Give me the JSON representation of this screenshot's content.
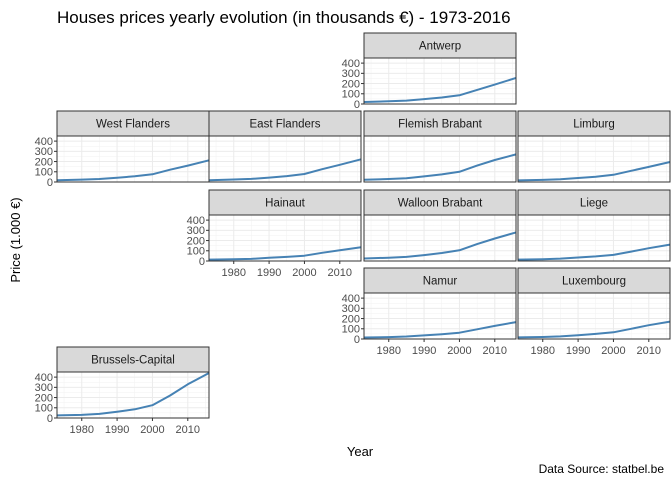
{
  "chart_data": {
    "type": "line",
    "title": "Houses prices yearly evolution (in thousands €) -  1973-2016",
    "xlabel": "Year",
    "ylabel": "Price (1.000 €)",
    "caption": "Data Source: statbel.be",
    "x_ticks": [
      "1980",
      "1990",
      "2000",
      "2010"
    ],
    "y_ticks": [
      "0",
      "100",
      "200",
      "300",
      "400"
    ],
    "xlim": [
      1973,
      2016
    ],
    "ylim": [
      0,
      450
    ],
    "grid": true,
    "colors": {
      "line": "#4682b4",
      "strip": "#d9d9d9",
      "grid": "#ebebeb",
      "panel_border": "#333333"
    },
    "x": [
      1973,
      1980,
      1985,
      1990,
      1995,
      2000,
      2005,
      2010,
      2016
    ],
    "series": [
      {
        "name": "Antwerp",
        "values": [
          20,
          26,
          33,
          48,
          64,
          85,
          138,
          190,
          255
        ]
      },
      {
        "name": "West Flanders",
        "values": [
          18,
          23,
          29,
          42,
          56,
          75,
          120,
          160,
          212
        ]
      },
      {
        "name": "East Flanders",
        "values": [
          18,
          24,
          30,
          43,
          58,
          78,
          125,
          168,
          222
        ]
      },
      {
        "name": "Flemish Brabant",
        "values": [
          22,
          29,
          37,
          55,
          74,
          100,
          160,
          215,
          270
        ]
      },
      {
        "name": "Limburg",
        "values": [
          16,
          21,
          27,
          39,
          52,
          70,
          110,
          148,
          196
        ]
      },
      {
        "name": "Hainaut",
        "values": [
          14,
          17,
          21,
          31,
          40,
          52,
          80,
          105,
          135
        ]
      },
      {
        "name": "Walloon Brabant",
        "values": [
          24,
          32,
          40,
          58,
          78,
          105,
          165,
          220,
          280
        ]
      },
      {
        "name": "Liege",
        "values": [
          14,
          18,
          23,
          34,
          45,
          60,
          92,
          125,
          160
        ]
      },
      {
        "name": "Namur",
        "values": [
          15,
          19,
          24,
          35,
          47,
          62,
          95,
          128,
          165
        ]
      },
      {
        "name": "Luxembourg",
        "values": [
          16,
          20,
          25,
          37,
          50,
          66,
          100,
          135,
          170
        ]
      },
      {
        "name": "Brussels-Capital",
        "values": [
          25,
          30,
          40,
          62,
          85,
          125,
          220,
          330,
          440
        ]
      }
    ]
  }
}
